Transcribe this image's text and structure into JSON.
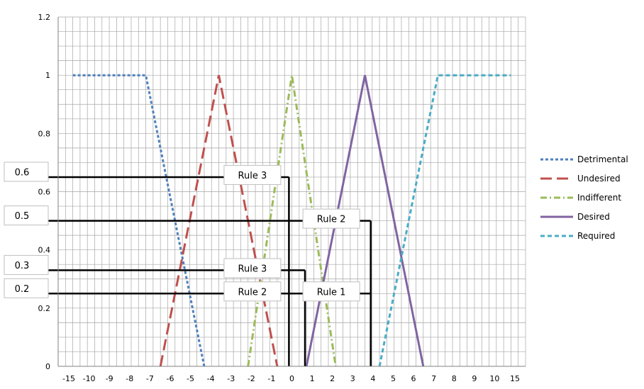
{
  "chart_data": {
    "type": "line",
    "title": "",
    "xlabel": "",
    "ylabel": "",
    "xlim": [
      -16,
      16
    ],
    "ylim": [
      0,
      1.2
    ],
    "grid": true,
    "legend_position": "right",
    "x_ticks": [
      "-15",
      "-10",
      "-9",
      "-8",
      "-7",
      "-6",
      "-5",
      "-4",
      "-3",
      "-2",
      "-1",
      "0",
      "1",
      "2",
      "3",
      "4",
      "5",
      "6",
      "7",
      "8",
      "9",
      "10",
      "15"
    ],
    "y_ticks": [
      "0",
      "0.2",
      "0.4",
      "0.6",
      "0.8",
      "1",
      "1.2"
    ],
    "series": [
      {
        "name": "Detrimental",
        "color": "#4f81bd",
        "dash": "dotted",
        "points": [
          [
            -15,
            1
          ],
          [
            -10,
            1
          ],
          [
            -6,
            0
          ]
        ]
      },
      {
        "name": "Undesired",
        "color": "#c0504d",
        "dash": "long-dash",
        "points": [
          [
            -9,
            0
          ],
          [
            -5,
            1
          ],
          [
            -1,
            0
          ]
        ]
      },
      {
        "name": "Indifferent",
        "color": "#9bbb59",
        "dash": "dash-dot",
        "points": [
          [
            -3,
            0
          ],
          [
            0,
            1
          ],
          [
            3,
            0
          ]
        ]
      },
      {
        "name": "Desired",
        "color": "#8064a2",
        "dash": "solid",
        "points": [
          [
            1,
            0
          ],
          [
            5,
            1
          ],
          [
            9,
            0
          ]
        ]
      },
      {
        "name": "Required",
        "color": "#4bacc6",
        "dash": "dashed",
        "points": [
          [
            6,
            0
          ],
          [
            10,
            1
          ],
          [
            15,
            1
          ]
        ]
      }
    ],
    "annotations": {
      "levels": [
        {
          "label": "0.6",
          "y": 0.65,
          "x_end": -0.2
        },
        {
          "label": "0.5",
          "y": 0.5,
          "x_end": 5.4
        },
        {
          "label": "0.3",
          "y": 0.33,
          "x_end": 0.9
        },
        {
          "label": "0.2",
          "y": 0.25,
          "x_end": 5.4
        }
      ],
      "verticals": [
        {
          "x": -0.2,
          "y_top": 0.65
        },
        {
          "x": 0.9,
          "y_top": 0.33
        },
        {
          "x": 5.4,
          "y_top": 0.5
        }
      ],
      "rules": [
        {
          "label": "Rule 3",
          "x": -2.7,
          "y": 0.65
        },
        {
          "label": "Rule 2",
          "x": 2.7,
          "y": 0.5
        },
        {
          "label": "Rule 3",
          "x": -2.7,
          "y": 0.33
        },
        {
          "label": "Rule 2",
          "x": -2.7,
          "y": 0.25
        },
        {
          "label": "Rule 1",
          "x": 2.7,
          "y": 0.25
        }
      ]
    }
  }
}
